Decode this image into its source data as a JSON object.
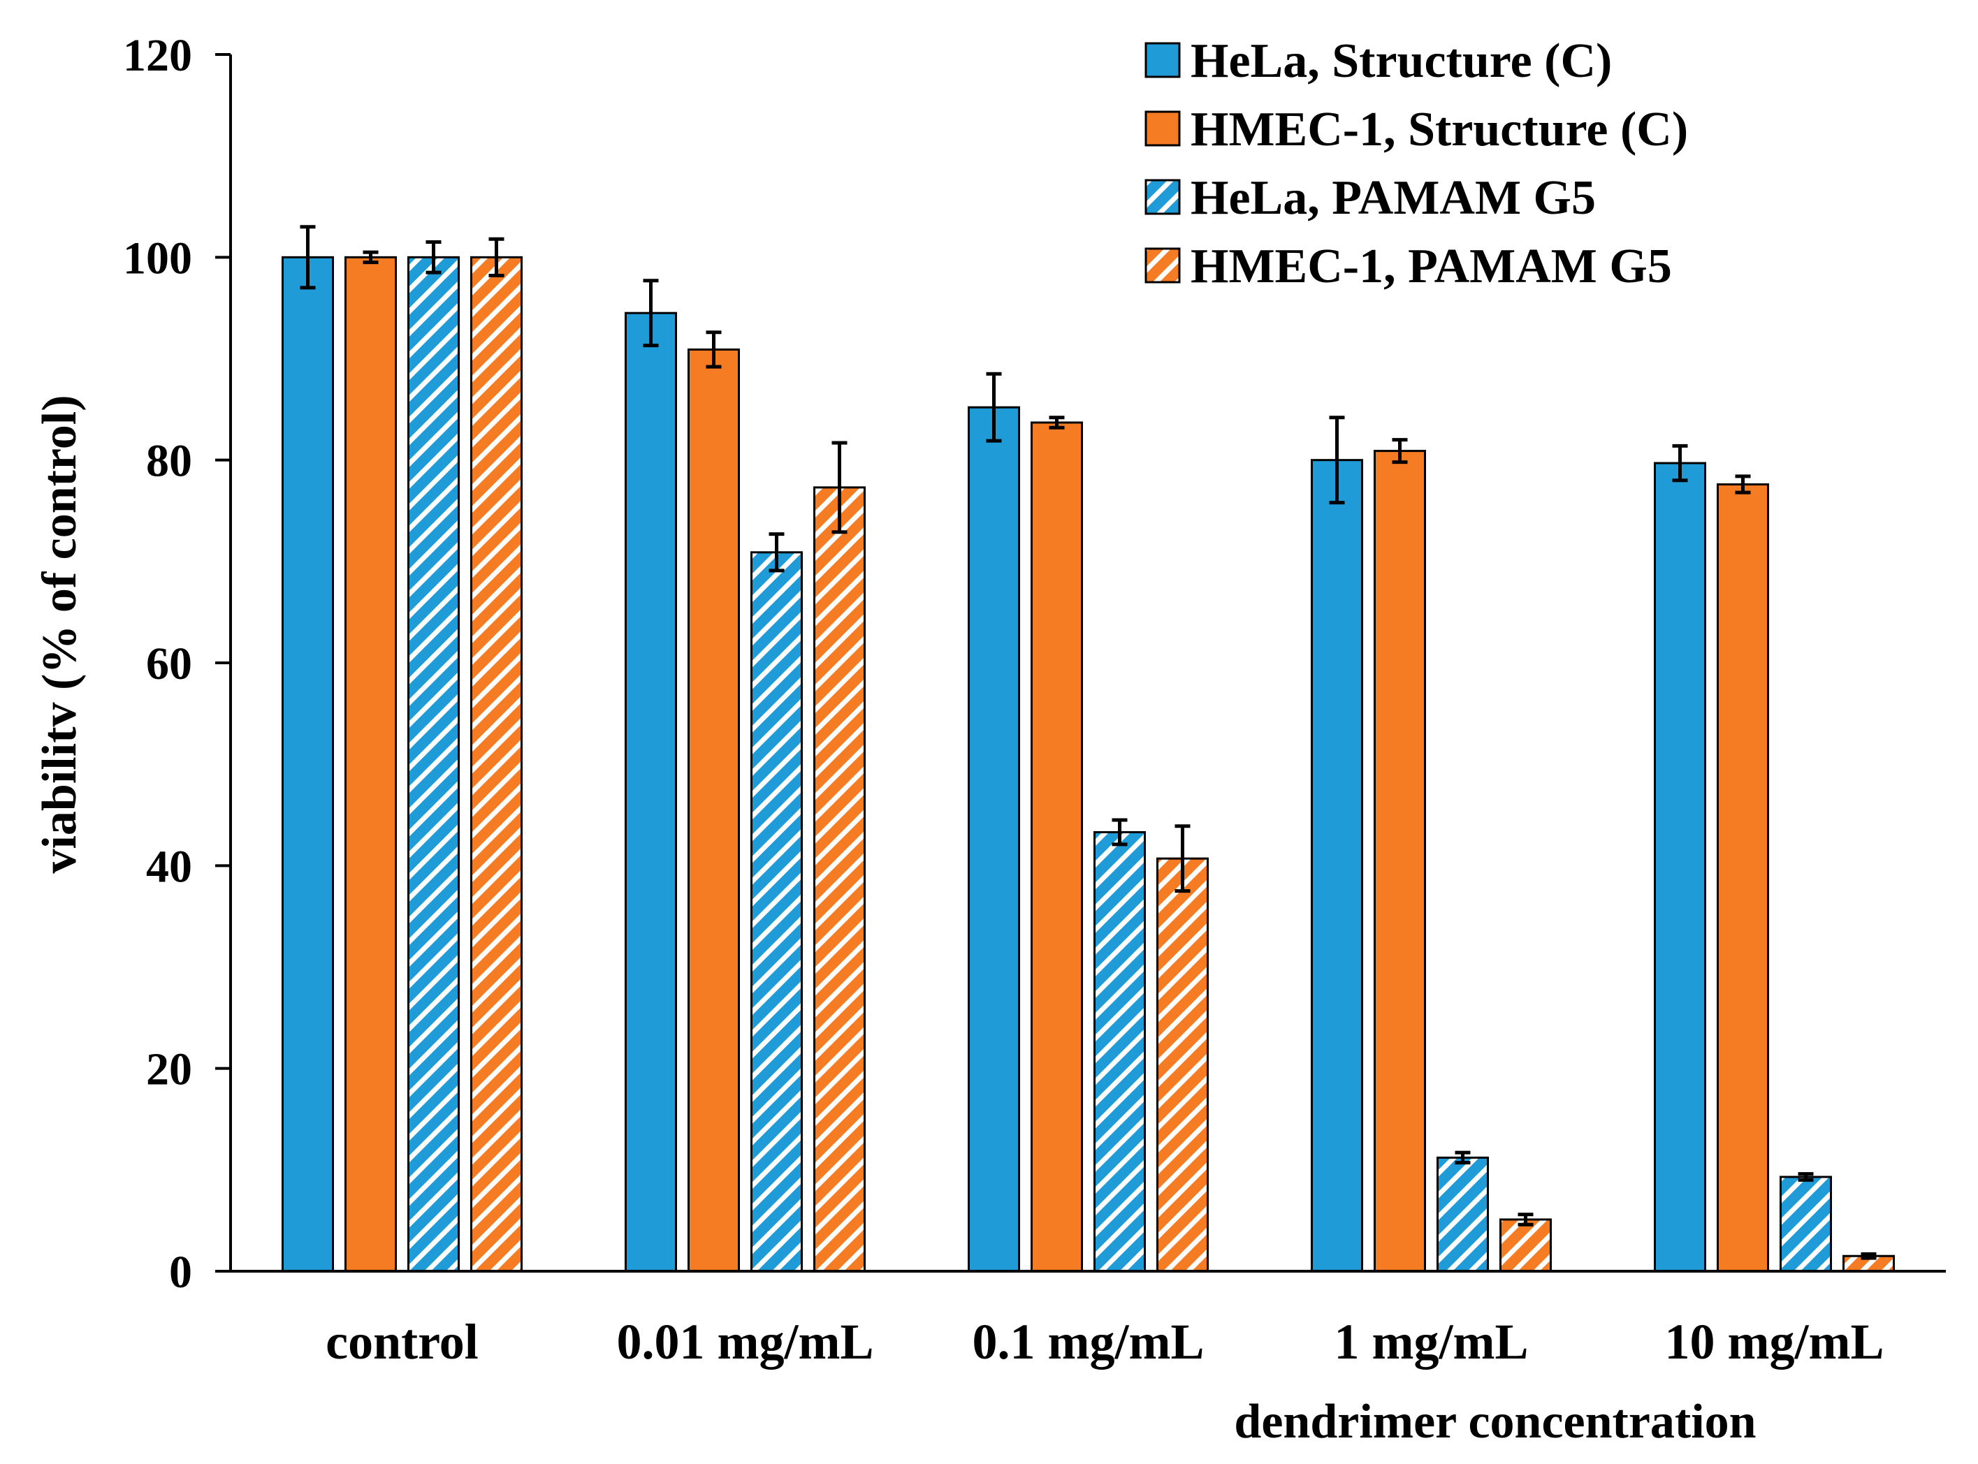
{
  "chart_data": {
    "type": "bar",
    "title": "",
    "xlabel": "dendrimer concentration",
    "ylabel": "viabilitv (% of control)",
    "ylim": [
      0,
      120
    ],
    "yticks": [
      "0",
      "20",
      "40",
      "60",
      "80",
      "100",
      "120"
    ],
    "ytick_values": [
      0,
      20,
      40,
      60,
      80,
      100,
      120
    ],
    "grid": false,
    "legend_position": "top-right",
    "categories": [
      "control",
      "0.01 mg/mL",
      "0.1 mg/mL",
      "1 mg/mL",
      "10 mg/mL"
    ],
    "series": [
      {
        "name": "HeLa, Structure (C)",
        "color": "#1f9bd7",
        "pattern": "solid",
        "values": [
          100,
          94.5,
          85.2,
          80.0,
          79.7
        ],
        "errors": [
          3.0,
          3.2,
          3.3,
          4.2,
          1.7
        ]
      },
      {
        "name": "HMEC-1, Structure (C)",
        "color": "#f57c22",
        "pattern": "solid",
        "values": [
          100,
          90.9,
          83.7,
          80.9,
          77.6
        ],
        "errors": [
          0.5,
          1.7,
          0.5,
          1.1,
          0.8
        ]
      },
      {
        "name": "HeLa, PAMAM G5",
        "color": "#1f9bd7",
        "pattern": "hatched",
        "values": [
          100,
          70.9,
          43.3,
          11.2,
          9.3
        ],
        "errors": [
          1.5,
          1.8,
          1.2,
          0.5,
          0.3
        ]
      },
      {
        "name": "HMEC-1, PAMAM G5",
        "color": "#f57c22",
        "pattern": "hatched",
        "values": [
          100,
          77.3,
          40.7,
          5.1,
          1.5
        ],
        "errors": [
          1.8,
          4.4,
          3.2,
          0.5,
          0.2
        ]
      }
    ]
  }
}
